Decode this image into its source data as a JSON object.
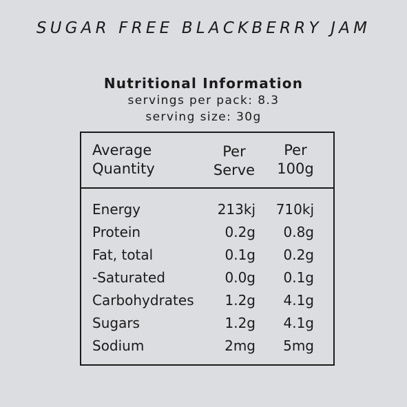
{
  "product_title": "SUGAR FREE BLACKBERRY JAM",
  "info": {
    "title": "Nutritional Information",
    "servings_per_pack": "servings per pack: 8.3",
    "serving_size": "serving size: 30g"
  },
  "table": {
    "headers": {
      "quantity": [
        "Average",
        "Quantity"
      ],
      "per_serve": [
        "Per",
        "Serve"
      ],
      "per_100g": [
        "Per",
        "100g"
      ]
    },
    "rows": [
      {
        "name": "Energy",
        "per_serve": "213kj",
        "per_100g": "710kj"
      },
      {
        "name": "Protein",
        "per_serve": "0.2g",
        "per_100g": "0.8g"
      },
      {
        "name": "Fat, total",
        "per_serve": "0.1g",
        "per_100g": "0.2g"
      },
      {
        "name": "-Saturated",
        "per_serve": "0.0g",
        "per_100g": "0.1g"
      },
      {
        "name": "Carbohydrates",
        "per_serve": "1.2g",
        "per_100g": "4.1g"
      },
      {
        "name": "Sugars",
        "per_serve": "1.2g",
        "per_100g": "4.1g"
      },
      {
        "name": "Sodium",
        "per_serve": "2mg",
        "per_100g": "5mg"
      }
    ]
  }
}
